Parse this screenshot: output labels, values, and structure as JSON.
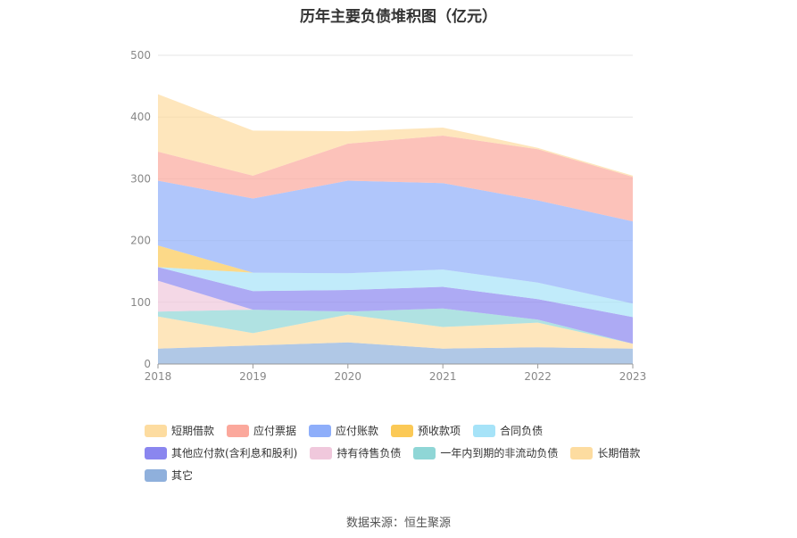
{
  "title": "历年主要负债堆积图（亿元）",
  "source": "数据来源：恒生聚源",
  "chart_data": {
    "type": "area",
    "stacked": true,
    "title": "历年主要负债堆积图（亿元）",
    "x": [
      "2018",
      "2019",
      "2020",
      "2021",
      "2022",
      "2023"
    ],
    "y_ticks": [
      "0",
      "100",
      "200",
      "300",
      "400",
      "500"
    ],
    "ylim": [
      0,
      500
    ],
    "grid": true,
    "legend_position": "bottom",
    "series": [
      {
        "name": "其它",
        "color": "#8fb0dc",
        "values": [
          25,
          30,
          35,
          25,
          27,
          25
        ]
      },
      {
        "name": "长期借款",
        "color": "#fddca0",
        "values": [
          52,
          20,
          45,
          35,
          40,
          8
        ]
      },
      {
        "name": "一年内到期的非流动负债",
        "color": "#8fd6d6",
        "values": [
          8,
          38,
          5,
          30,
          5,
          0
        ]
      },
      {
        "name": "持有待售负债",
        "color": "#f0c8dc",
        "values": [
          50,
          0,
          0,
          0,
          0,
          0
        ]
      },
      {
        "name": "其他应付款(含利息和股利)",
        "color": "#8a86ef",
        "values": [
          22,
          30,
          35,
          35,
          33,
          43
        ]
      },
      {
        "name": "合同负债",
        "color": "#a6e3f8",
        "values": [
          0,
          30,
          27,
          28,
          27,
          22
        ]
      },
      {
        "name": "预收款项",
        "color": "#fbc956",
        "values": [
          35,
          0,
          0,
          0,
          0,
          0
        ]
      },
      {
        "name": "应付账款",
        "color": "#8eaefa",
        "values": [
          105,
          120,
          150,
          140,
          133,
          133
        ]
      },
      {
        "name": "应付票据",
        "color": "#fba89c",
        "values": [
          47,
          37,
          60,
          77,
          83,
          72
        ]
      },
      {
        "name": "短期借款",
        "color": "#fddca0",
        "values": [
          93,
          73,
          20,
          13,
          2,
          2
        ]
      }
    ],
    "legend_order": [
      "短期借款",
      "应付票据",
      "应付账款",
      "预收款项",
      "合同负债",
      "其他应付款(含利息和股利)",
      "持有待售负债",
      "一年内到期的非流动负债",
      "长期借款",
      "其它"
    ]
  }
}
